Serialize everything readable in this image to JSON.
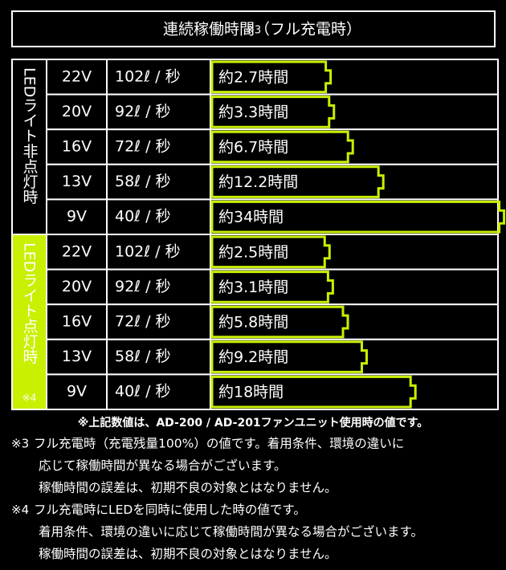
{
  "title": "連続稼働時間（フル充電時）",
  "title_note": "※3",
  "groups": [
    {
      "label": "LEDライト非点灯時",
      "rows": [
        {
          "voltage": "22V",
          "flow": "102ℓ / 秒",
          "runtime": "約2.7時間",
          "hours": 2.7,
          "highlight": true
        },
        {
          "voltage": "20V",
          "flow": "92ℓ / 秒",
          "runtime": "約3.3時間",
          "hours": 3.3
        },
        {
          "voltage": "16V",
          "flow": "72ℓ / 秒",
          "runtime": "約6.7時間",
          "hours": 6.7
        },
        {
          "voltage": "13V",
          "flow": "58ℓ / 秒",
          "runtime": "約12.2時間",
          "hours": 12.2
        },
        {
          "voltage": "9V",
          "flow": "40ℓ / 秒",
          "runtime": "約34時間",
          "hours": 34
        }
      ]
    },
    {
      "label": "LEDライト点灯時",
      "note": "※4",
      "rows": [
        {
          "voltage": "22V",
          "flow": "102ℓ / 秒",
          "runtime": "約2.5時間",
          "hours": 2.5,
          "highlight": true
        },
        {
          "voltage": "20V",
          "flow": "92ℓ / 秒",
          "runtime": "約3.1時間",
          "hours": 3.1
        },
        {
          "voltage": "16V",
          "flow": "72ℓ / 秒",
          "runtime": "約5.8時間",
          "hours": 5.8
        },
        {
          "voltage": "13V",
          "flow": "58ℓ / 秒",
          "runtime": "約9.2時間",
          "hours": 9.2
        },
        {
          "voltage": "9V",
          "flow": "40ℓ / 秒",
          "runtime": "約18時間",
          "hours": 18
        }
      ]
    }
  ],
  "footnote": "※上記数値は、AD-200 / AD-201ファンユニット使用時の値です。",
  "notes": [
    {
      "mark": "※3",
      "lines": [
        "フル充電時（充電残量100%）の値です。着用条件、環境の違いに",
        "応じて稼働時間が異なる場合がございます。",
        "稼働時間の誤差は、初期不良の対象とはなりません。"
      ]
    },
    {
      "mark": "※4",
      "lines": [
        "フル充電時にLEDを同時に使用した時の値です。",
        "着用条件、環境の違いに応じて稼働時間が異なる場合がございます。",
        "稼働時間の誤差は、初期不良の対象とはなりません。"
      ]
    }
  ]
}
